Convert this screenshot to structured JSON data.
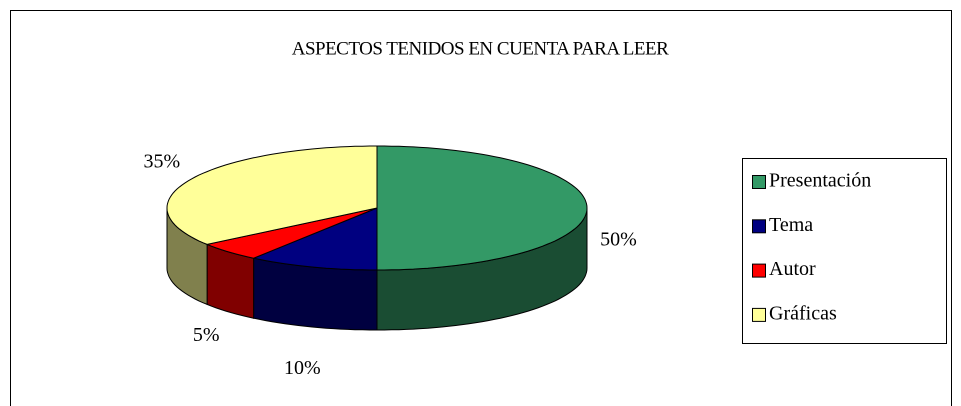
{
  "chart_data": {
    "type": "pie3d",
    "title": "ASPECTOS TENIDOS EN CUENTA PARA LEER",
    "categories": [
      "Presentación",
      "Tema",
      "Autor",
      "Gráficas"
    ],
    "values": [
      50,
      10,
      5,
      35
    ],
    "value_labels": [
      "50%",
      "10%",
      "5%",
      "35%"
    ],
    "colors": [
      "#339966",
      "#000080",
      "#ff0000",
      "#ffff99"
    ],
    "legend": "right"
  }
}
